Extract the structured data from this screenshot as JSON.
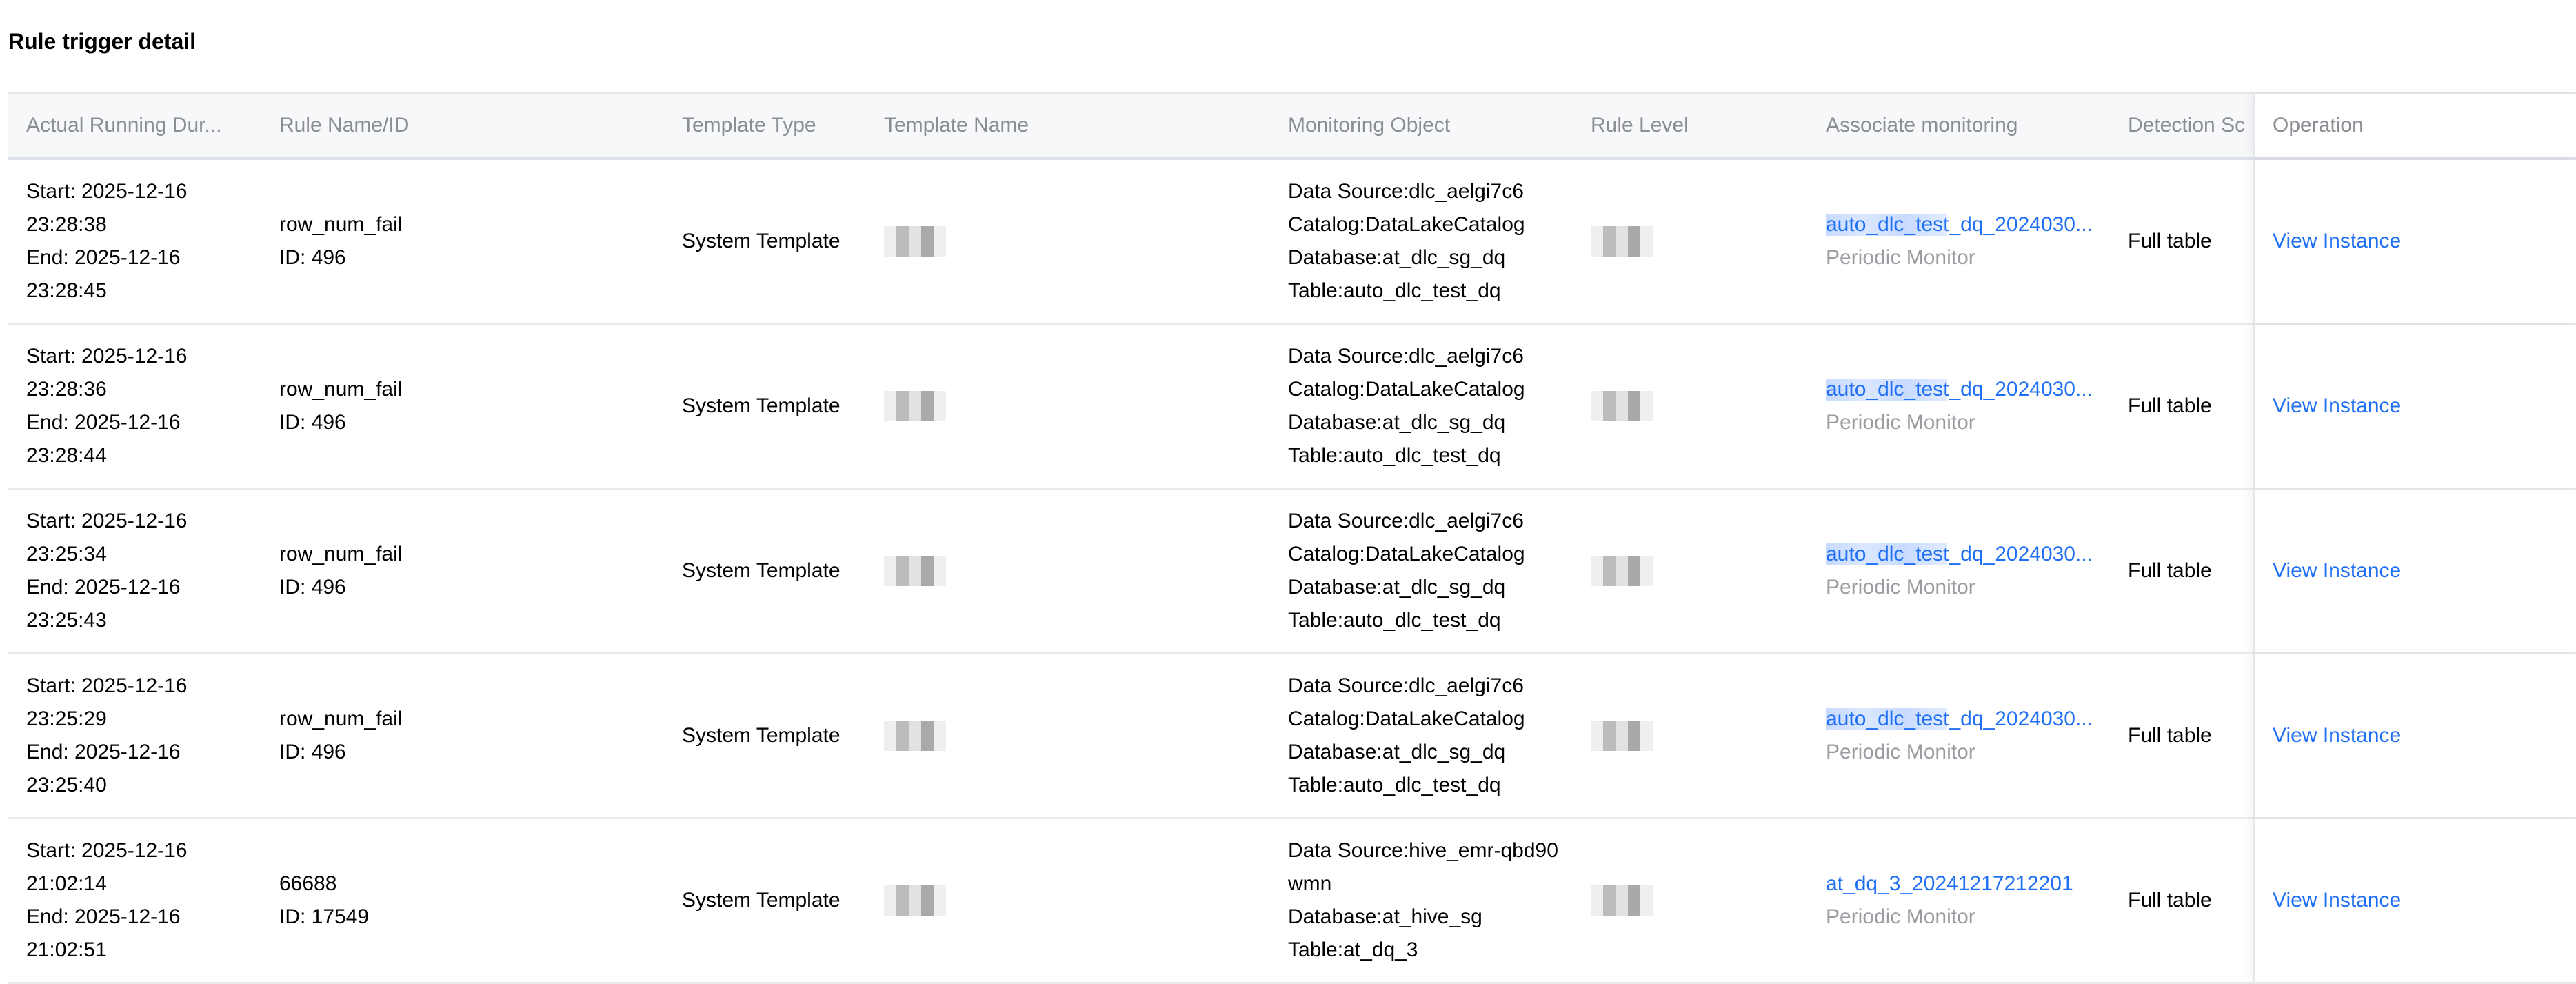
{
  "title": "Rule trigger detail",
  "columns": [
    "Actual Running Dur...",
    "Rule Name/ID",
    "Template Type",
    "Template Name",
    "Monitoring Object",
    "Rule Level",
    "Associate monitoring",
    "Detection Sc",
    "Operation"
  ],
  "rows": [
    {
      "start": "Start: 2025-12-16",
      "start_time": "23:28:38",
      "end": "End: 2025-12-16",
      "end_time": "23:28:45",
      "rule_name": "row_num_fail",
      "rule_id": "ID: 496",
      "template_type": "System Template",
      "mon": [
        "Data Source:dlc_aelgi7c6",
        "Catalog:DataLakeCatalog",
        "Database:at_dlc_sg_dq",
        "Table:auto_dlc_test_dq"
      ],
      "assoc": "auto_dlc_test_dq_2024030...",
      "assoc_type": "Periodic Monitor",
      "scope": "Full table",
      "op": "View Instance"
    },
    {
      "start": "Start: 2025-12-16",
      "start_time": "23:28:36",
      "end": "End: 2025-12-16",
      "end_time": "23:28:44",
      "rule_name": "row_num_fail",
      "rule_id": "ID: 496",
      "template_type": "System Template",
      "mon": [
        "Data Source:dlc_aelgi7c6",
        "Catalog:DataLakeCatalog",
        "Database:at_dlc_sg_dq",
        "Table:auto_dlc_test_dq"
      ],
      "assoc": "auto_dlc_test_dq_2024030...",
      "assoc_type": "Periodic Monitor",
      "scope": "Full table",
      "op": "View Instance"
    },
    {
      "start": "Start: 2025-12-16",
      "start_time": "23:25:34",
      "end": "End: 2025-12-16",
      "end_time": "23:25:43",
      "rule_name": "row_num_fail",
      "rule_id": "ID: 496",
      "template_type": "System Template",
      "mon": [
        "Data Source:dlc_aelgi7c6",
        "Catalog:DataLakeCatalog",
        "Database:at_dlc_sg_dq",
        "Table:auto_dlc_test_dq"
      ],
      "assoc": "auto_dlc_test_dq_2024030...",
      "assoc_type": "Periodic Monitor",
      "scope": "Full table",
      "op": "View Instance"
    },
    {
      "start": "Start: 2025-12-16",
      "start_time": "23:25:29",
      "end": "End: 2025-12-16",
      "end_time": "23:25:40",
      "rule_name": "row_num_fail",
      "rule_id": "ID: 496",
      "template_type": "System Template",
      "mon": [
        "Data Source:dlc_aelgi7c6",
        "Catalog:DataLakeCatalog",
        "Database:at_dlc_sg_dq",
        "Table:auto_dlc_test_dq"
      ],
      "assoc": "auto_dlc_test_dq_2024030...",
      "assoc_type": "Periodic Monitor",
      "scope": "Full table",
      "op": "View Instance"
    },
    {
      "start": "Start: 2025-12-16",
      "start_time": "21:02:14",
      "end": "End: 2025-12-16",
      "end_time": "21:02:51",
      "rule_name": "66688",
      "rule_id": "ID: 17549",
      "template_type": "System Template",
      "mon": [
        "Data Source:hive_emr-qbd90",
        "wmn",
        "Database:at_hive_sg",
        "Table:at_dq_3"
      ],
      "assoc": "at_dq_3_20241217212201",
      "assoc_type": "Periodic Monitor",
      "scope": "Full table",
      "op": "View Instance"
    }
  ],
  "colors": {
    "link": "#1f6ff5",
    "header_bg": "#f7f8fa",
    "header_text": "#8a8d93"
  }
}
